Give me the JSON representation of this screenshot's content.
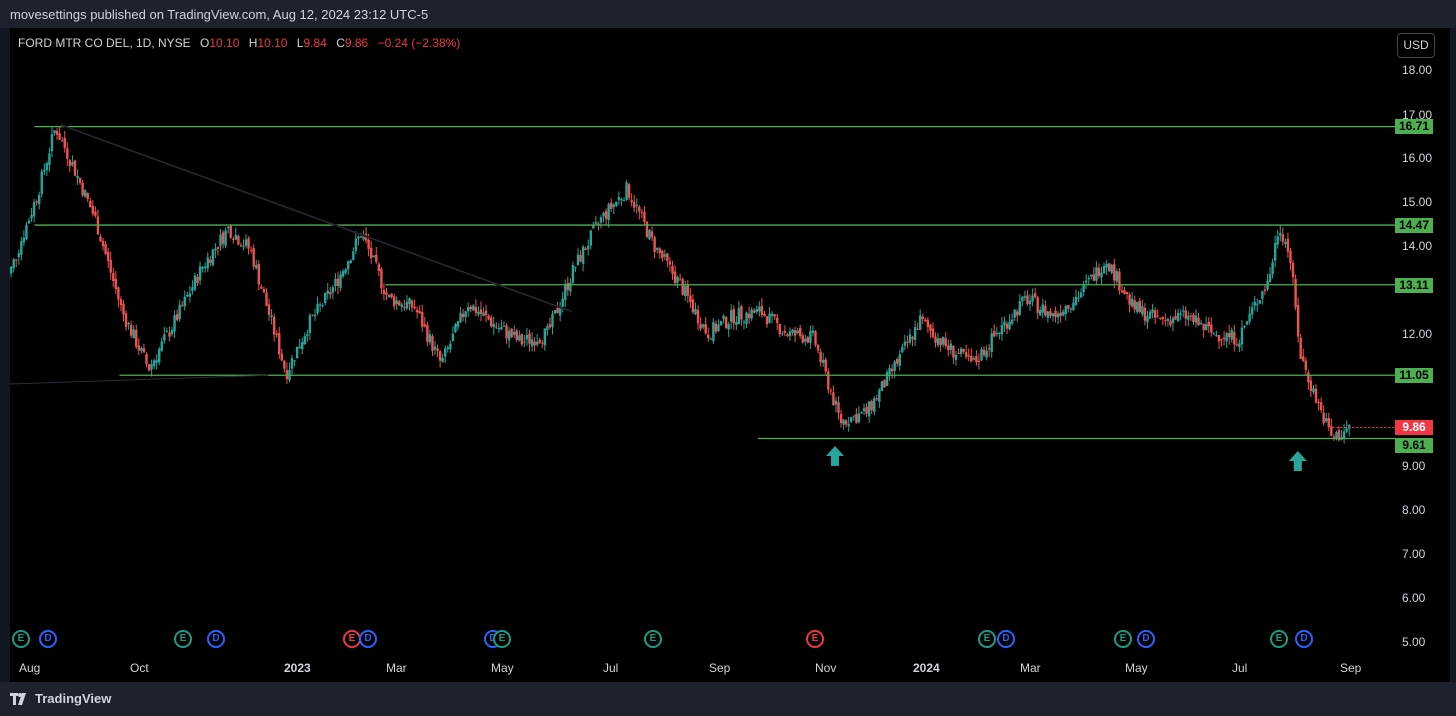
{
  "publish_line": "movesettings published on TradingView.com, Aug 12, 2024 23:12 UTC-5",
  "legend": {
    "symbol": "FORD MTR CO DEL, 1D, NYSE",
    "open_label": "O",
    "open": "10.10",
    "high_label": "H",
    "high": "10.10",
    "low_label": "L",
    "low": "9.84",
    "close_label": "C",
    "close": "9.86",
    "change": "−0.24 (−2.38%)"
  },
  "currency_button": "USD",
  "price_axis": [
    "18.00",
    "17.00",
    "16.00",
    "15.00",
    "14.00",
    "12.00",
    "9.00",
    "8.00",
    "7.00",
    "6.00",
    "5.00"
  ],
  "date_axis": [
    {
      "label": "Aug",
      "bold": false
    },
    {
      "label": "Oct",
      "bold": false
    },
    {
      "label": "2023",
      "bold": true
    },
    {
      "label": "Mar",
      "bold": false
    },
    {
      "label": "May",
      "bold": false
    },
    {
      "label": "Jul",
      "bold": false
    },
    {
      "label": "Sep",
      "bold": false
    },
    {
      "label": "Nov",
      "bold": false
    },
    {
      "label": "2024",
      "bold": true
    },
    {
      "label": "Mar",
      "bold": false
    },
    {
      "label": "May",
      "bold": false
    },
    {
      "label": "Jul",
      "bold": false
    },
    {
      "label": "Sep",
      "bold": false
    }
  ],
  "horizontal_levels": [
    {
      "value": "16.71",
      "start": "Aug 2022"
    },
    {
      "value": "14.47",
      "start": "Aug 2022"
    },
    {
      "value": "13.11",
      "start": "Feb 2023"
    },
    {
      "value": "11.05",
      "start": "Sep 2022"
    },
    {
      "value": "9.61",
      "start": "Sep 2023"
    }
  ],
  "current_price_label": "9.86",
  "colors": {
    "up": "#26a69a",
    "down": "#ef5350",
    "level": "#4caf50",
    "background": "#000000",
    "current": "#f23645"
  },
  "event_badges": [
    {
      "type": "E",
      "color": "green"
    },
    {
      "type": "D",
      "color": "blue"
    },
    {
      "type": "E",
      "color": "green"
    },
    {
      "type": "D",
      "color": "blue"
    },
    {
      "type": "E",
      "color": "red"
    },
    {
      "type": "D",
      "color": "blue"
    },
    {
      "type": "D",
      "color": "blue"
    },
    {
      "type": "E",
      "color": "green"
    },
    {
      "type": "E",
      "color": "green"
    },
    {
      "type": "E",
      "color": "red"
    },
    {
      "type": "E",
      "color": "green"
    },
    {
      "type": "D",
      "color": "blue"
    },
    {
      "type": "E",
      "color": "green"
    },
    {
      "type": "D",
      "color": "blue"
    },
    {
      "type": "E",
      "color": "green"
    },
    {
      "type": "D",
      "color": "blue"
    }
  ],
  "chart_data": {
    "type": "candlestick",
    "y_range": [
      5,
      18.5
    ],
    "x_range": [
      "Aug 2022",
      "Sep 2024"
    ],
    "price_path": [
      [
        "Jul 2022",
        12.9
      ],
      [
        "Aug 2022",
        15.2
      ],
      [
        "Aug 2022",
        16.7
      ],
      [
        "Aug 2022",
        15.8
      ],
      [
        "Sep 2022",
        14.6
      ],
      [
        "Sep 2022",
        12.5
      ],
      [
        "Oct 2022",
        11.2
      ],
      [
        "Oct 2022",
        12.3
      ],
      [
        "Nov 2022",
        13.5
      ],
      [
        "Nov 2022",
        14.4
      ],
      [
        "Dec 2022",
        13.9
      ],
      [
        "Dec 2022",
        12.5
      ],
      [
        "Dec 2022",
        11.1
      ],
      [
        "Jan 2023",
        12.2
      ],
      [
        "Jan 2023",
        13.1
      ],
      [
        "Feb 2023",
        14.3
      ],
      [
        "Feb 2023",
        12.8
      ],
      [
        "Mar 2023",
        12.6
      ],
      [
        "Mar 2023",
        11.3
      ],
      [
        "Apr 2023",
        12.7
      ],
      [
        "Apr 2023",
        12.2
      ],
      [
        "May 2023",
        11.8
      ],
      [
        "May 2023",
        12.0
      ],
      [
        "Jun 2023",
        13.5
      ],
      [
        "Jun 2023",
        14.6
      ],
      [
        "Jul 2023",
        15.3
      ],
      [
        "Jul 2023",
        14.0
      ],
      [
        "Aug 2023",
        13.1
      ],
      [
        "Aug 2023",
        12.0
      ],
      [
        "Sep 2023",
        12.4
      ],
      [
        "Sep 2023",
        12.5
      ],
      [
        "Oct 2023",
        12.0
      ],
      [
        "Oct 2023",
        11.9
      ],
      [
        "Nov 2023",
        10.0
      ],
      [
        "Nov 2023",
        10.2
      ],
      [
        "Dec 2023",
        11.2
      ],
      [
        "Dec 2023",
        12.3
      ],
      [
        "Jan 2024",
        11.7
      ],
      [
        "Jan 2024",
        11.3
      ],
      [
        "Feb 2024",
        12.1
      ],
      [
        "Feb 2024",
        12.8
      ],
      [
        "Mar 2024",
        12.4
      ],
      [
        "Mar 2024",
        12.9
      ],
      [
        "Apr 2024",
        13.7
      ],
      [
        "Apr 2024",
        12.6
      ],
      [
        "May 2024",
        12.3
      ],
      [
        "May 2024",
        12.4
      ],
      [
        "Jun 2024",
        12.0
      ],
      [
        "Jun 2024",
        11.9
      ],
      [
        "Jul 2024",
        12.8
      ],
      [
        "Jul 2024",
        13.2
      ],
      [
        "Jul 2024",
        14.5
      ],
      [
        "Jul 2024",
        13.8
      ],
      [
        "Jul 2024",
        11.5
      ],
      [
        "Aug 2024",
        10.6
      ],
      [
        "Aug 2024",
        9.6
      ],
      [
        "Aug 2024",
        9.86
      ]
    ],
    "annotations": [
      "trendline from Aug 2022 high down to Jun 2023",
      "up-arrow at Nov 2023 low",
      "up-arrow at Aug 2024 low"
    ]
  }
}
